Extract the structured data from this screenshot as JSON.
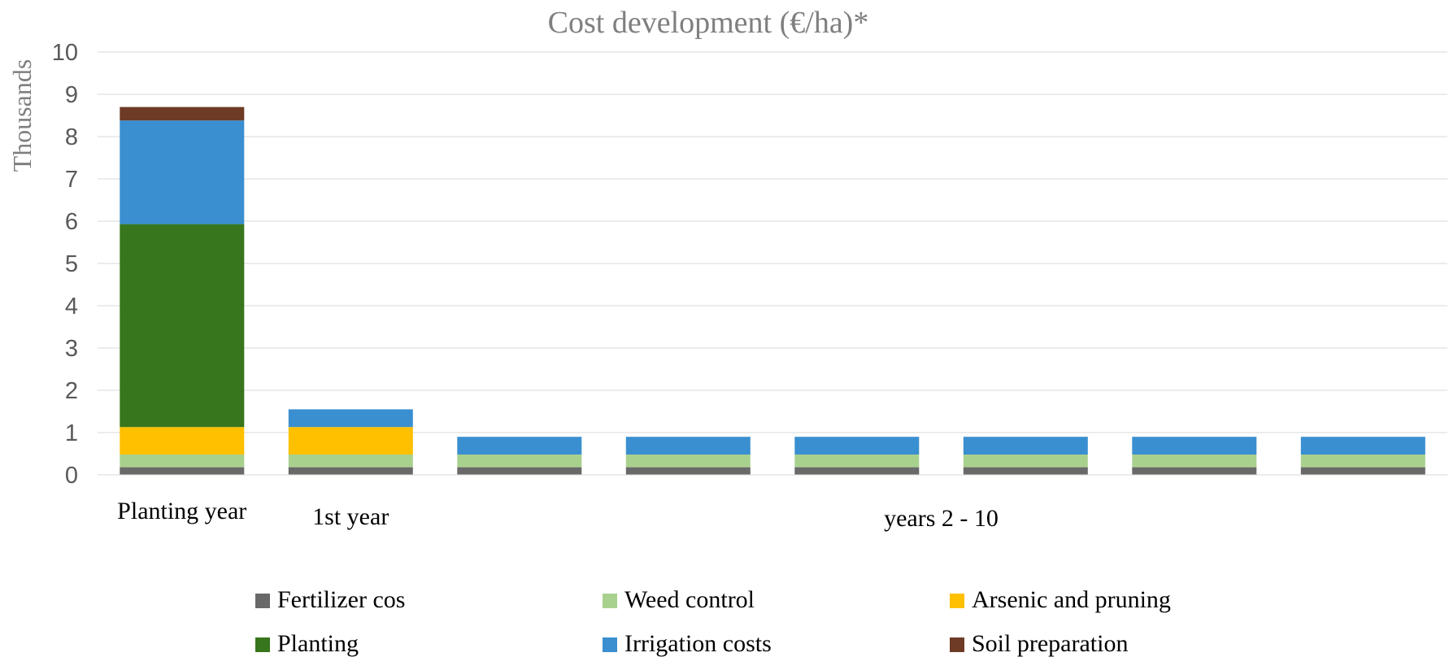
{
  "chart_data": {
    "type": "bar",
    "stacked": true,
    "title": "Cost development (€/ha)*",
    "ylabel": "Thousands",
    "ylim": [
      0,
      10
    ],
    "yticks": [
      0,
      1,
      2,
      3,
      4,
      5,
      6,
      7,
      8,
      9,
      10
    ],
    "grid": true,
    "legend_position": "bottom",
    "categories": [
      "Planting year",
      "1st year",
      "",
      "",
      "",
      "",
      "",
      ""
    ],
    "group_labels": [
      {
        "label": "years 2 - 10",
        "from": 2,
        "to": 7
      }
    ],
    "series": [
      {
        "name": "Fertilizer cos",
        "color": "#696969",
        "values": [
          0.18,
          0.18,
          0.18,
          0.18,
          0.18,
          0.18,
          0.18,
          0.18
        ]
      },
      {
        "name": "Weed control",
        "color": "#a9d18e",
        "values": [
          0.3,
          0.3,
          0.3,
          0.3,
          0.3,
          0.3,
          0.3,
          0.3
        ]
      },
      {
        "name": "Arsenic and pruning",
        "color": "#ffc000",
        "values": [
          0.65,
          0.65,
          0,
          0,
          0,
          0,
          0,
          0
        ]
      },
      {
        "name": "Planting",
        "color": "#38761d",
        "values": [
          4.8,
          0,
          0,
          0,
          0,
          0,
          0,
          0
        ]
      },
      {
        "name": "Irrigation costs",
        "color": "#3a8fd0",
        "values": [
          2.45,
          0.42,
          0.42,
          0.42,
          0.42,
          0.42,
          0.42,
          0.42
        ]
      },
      {
        "name": "Soil preparation",
        "color": "#6e3b27",
        "values": [
          0.32,
          0,
          0,
          0,
          0,
          0,
          0,
          0
        ]
      }
    ]
  }
}
